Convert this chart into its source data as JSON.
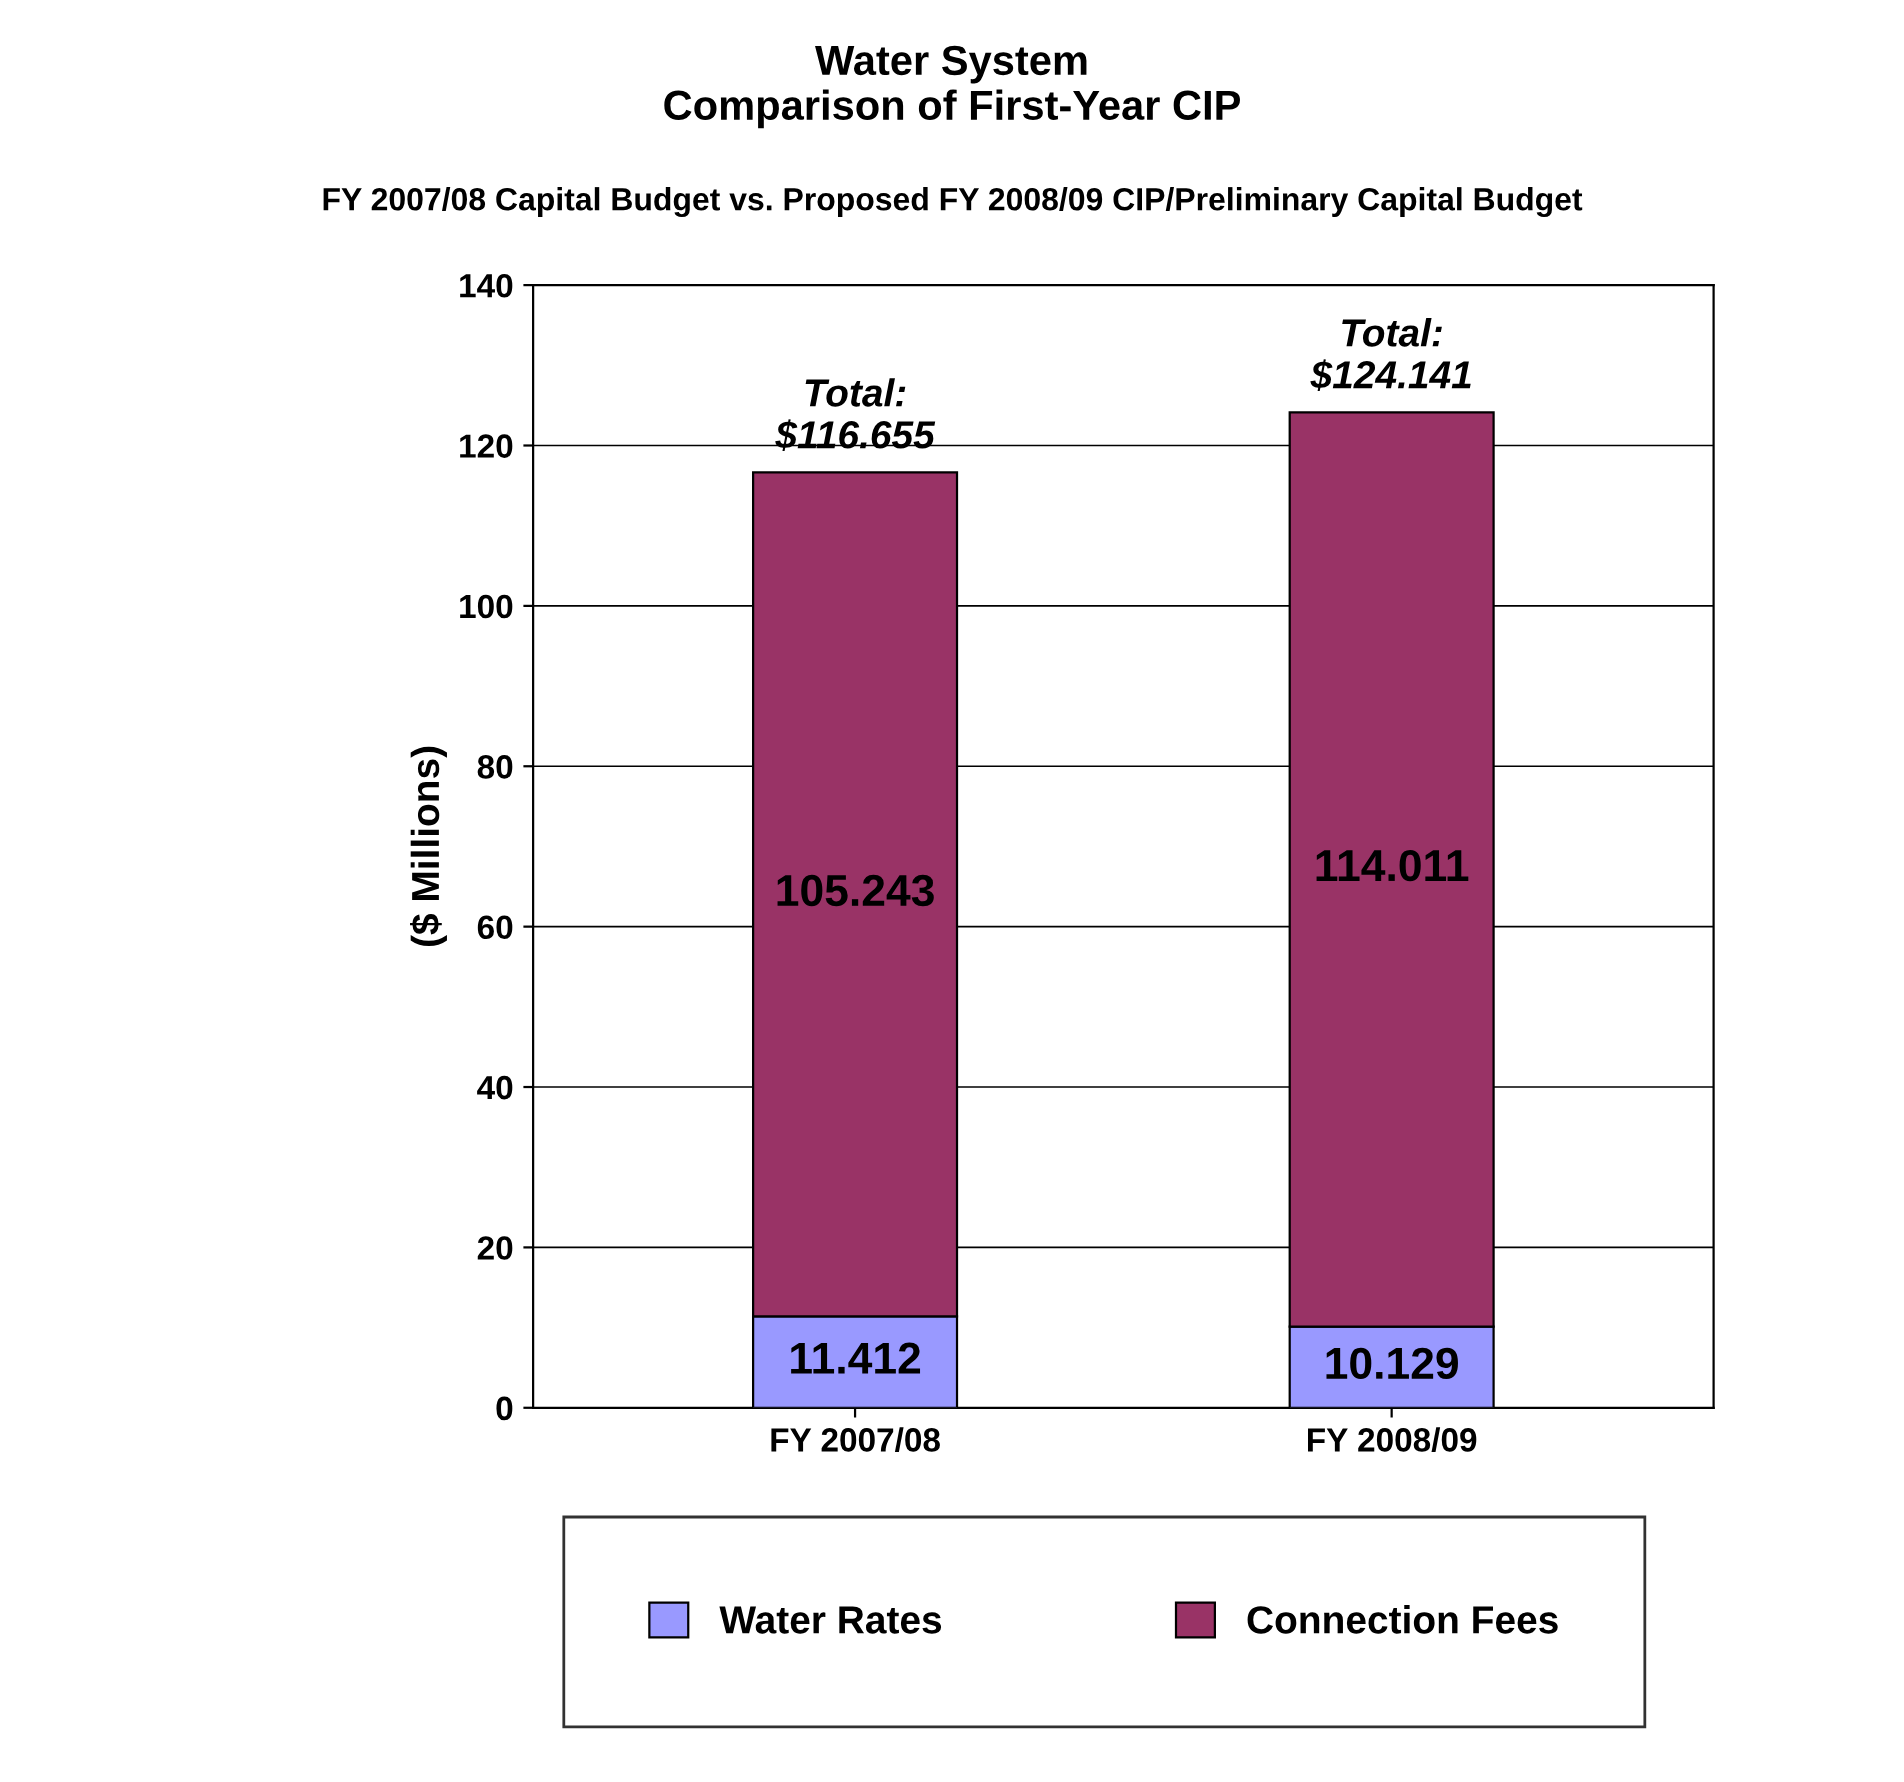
{
  "chart_data": {
    "type": "bar",
    "title": "Water System\nComparison of First-Year CIP",
    "subtitle": "FY 2007/08 Capital Budget vs. Proposed FY 2008/09 CIP/Preliminary Capital Budget",
    "ylabel": "($ Millions)",
    "categories": [
      "FY 2007/08",
      "FY 2008/09"
    ],
    "series": [
      {
        "name": "Water Rates",
        "color": "#9999ff",
        "values": [
          11.412,
          10.129
        ]
      },
      {
        "name": "Connection Fees",
        "color": "#993366",
        "values": [
          105.243,
          114.011
        ]
      }
    ],
    "stacked": true,
    "data_labels": true,
    "totals": [
      "Total:\n$116.655",
      "Total:\n$124.141"
    ],
    "ylim": [
      0,
      140
    ],
    "yticks": [
      0,
      20,
      40,
      60,
      80,
      100,
      120,
      140
    ],
    "grid": "y",
    "legend": "bottom"
  }
}
